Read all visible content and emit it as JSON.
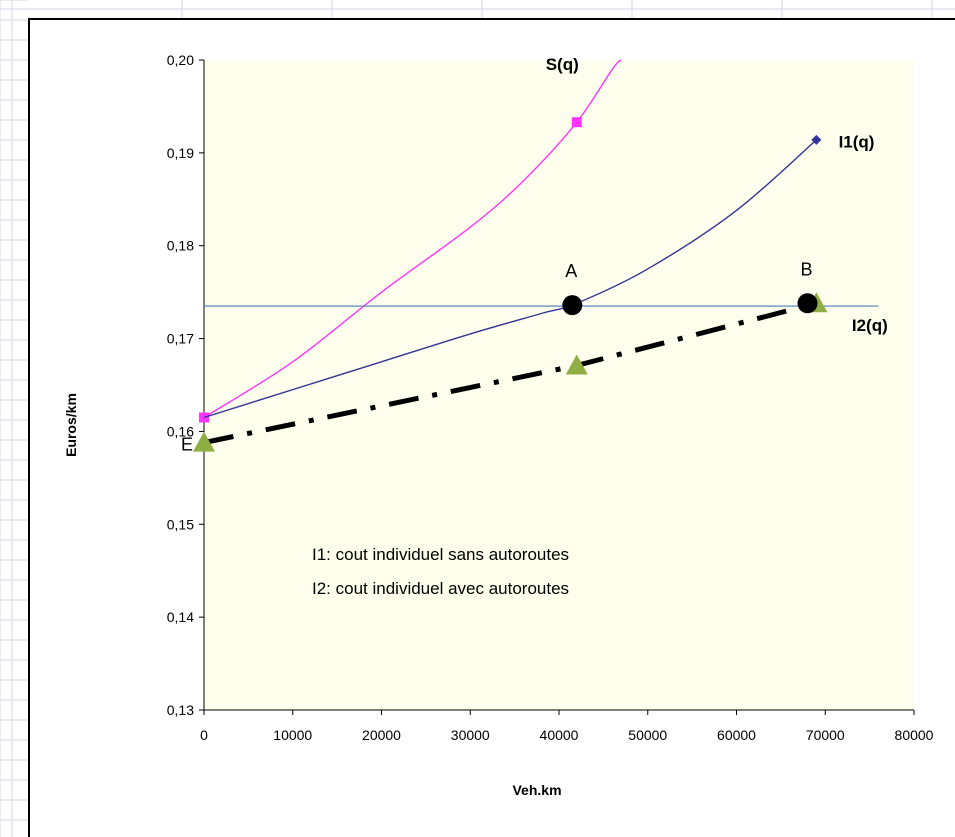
{
  "chart_data": {
    "type": "line",
    "title": "",
    "xlabel": "Veh.km",
    "ylabel": "Euros/km",
    "xlim": [
      0,
      80000
    ],
    "ylim": [
      0.13,
      0.2
    ],
    "x_ticks": [
      "0",
      "10000",
      "20000",
      "30000",
      "40000",
      "50000",
      "60000",
      "70000",
      "80000"
    ],
    "y_ticks": [
      "0,13",
      "0,14",
      "0,15",
      "0,16",
      "0,17",
      "0,18",
      "0,19",
      "0,20"
    ],
    "grid": false,
    "series": [
      {
        "name": "S(q)",
        "color": "#ff33ff",
        "marker": "square",
        "points": [
          [
            0,
            0.1615
          ],
          [
            42000,
            0.1933
          ]
        ],
        "curve": [
          [
            0,
            0.1615
          ],
          [
            10000,
            0.1675
          ],
          [
            20000,
            0.175
          ],
          [
            30000,
            0.182
          ],
          [
            36000,
            0.187
          ],
          [
            42000,
            0.1933
          ],
          [
            46000,
            0.199
          ],
          [
            47000,
            0.2
          ]
        ]
      },
      {
        "name": "I1(q)",
        "color": "#333399",
        "marker": "diamond",
        "points": [
          [
            69000,
            0.1914
          ]
        ],
        "curve": [
          [
            0,
            0.1615
          ],
          [
            10000,
            0.1645
          ],
          [
            20000,
            0.1675
          ],
          [
            30000,
            0.1705
          ],
          [
            38000,
            0.1727
          ],
          [
            42000,
            0.1738
          ],
          [
            50000,
            0.1775
          ],
          [
            60000,
            0.1838
          ],
          [
            69000,
            0.1914
          ]
        ]
      },
      {
        "name": "I2(q)",
        "color": "#4a7ebb",
        "marker": "none",
        "points": [
          [
            0,
            0.1735
          ],
          [
            76000,
            0.1735
          ]
        ],
        "curve": [
          [
            0,
            0.1735
          ],
          [
            76000,
            0.1735
          ]
        ]
      },
      {
        "name": "",
        "color": "#000000",
        "marker": "triangle",
        "marker_color": "#8faf45",
        "style": "dash-dot",
        "points": [
          [
            0,
            0.1588
          ],
          [
            42000,
            0.1671
          ],
          [
            69000,
            0.1738
          ]
        ],
        "curve": [
          [
            0,
            0.1588
          ],
          [
            42000,
            0.1671
          ],
          [
            69000,
            0.1738
          ]
        ]
      }
    ],
    "highlight_points": [
      {
        "label": "A",
        "x": 41500,
        "y": 0.1736
      },
      {
        "label": "B",
        "x": 68000,
        "y": 0.1738
      }
    ],
    "point_labels": [
      {
        "label": "E",
        "x": 0,
        "y": 0.1588
      }
    ],
    "annotations": [
      "I1: cout individuel sans autoroutes",
      "I2: cout individuel avec autoroutes"
    ]
  }
}
